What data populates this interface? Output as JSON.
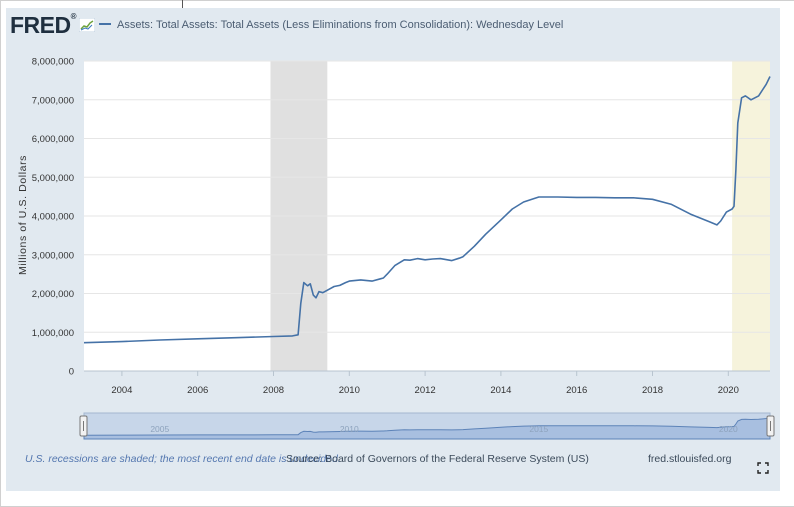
{
  "header": {
    "logo": "FRED",
    "logo_mark": "®",
    "series_title": "Assets: Total Assets: Total Assets (Less Eliminations from Consolidation): Wednesday Level"
  },
  "footer": {
    "recession_note": "U.S. recessions are shaded; the most recent end date is undecided.",
    "source": "Source: Board of Governors of the Federal Reserve System (US)",
    "site": "fred.stlouisfed.org"
  },
  "colors": {
    "line": "#4572a7",
    "recession": "#e0e0e0",
    "recent": "#f6f3dc",
    "navigator_fill": "#a8bfe0",
    "background": "#e1e9f0"
  },
  "chart_data": {
    "type": "line",
    "title": "Assets: Total Assets: Total Assets (Less Eliminations from Consolidation): Wednesday Level",
    "ylabel": "Millions of U.S. Dollars",
    "xlabel": "",
    "ylim": [
      0,
      8000000
    ],
    "xlim": [
      2003.0,
      2021.1
    ],
    "x_ticks": [
      "2004",
      "2006",
      "2008",
      "2010",
      "2012",
      "2014",
      "2016",
      "2018",
      "2020"
    ],
    "y_ticks": [
      "0",
      "1,000,000",
      "2,000,000",
      "3,000,000",
      "4,000,000",
      "5,000,000",
      "6,000,000",
      "7,000,000",
      "8,000,000"
    ],
    "recession_bands": [
      [
        2007.92,
        2009.42
      ]
    ],
    "recent_band": [
      2020.1,
      2021.1
    ],
    "navigator_ticks": [
      "2005",
      "2010",
      "2015",
      "2020"
    ],
    "series": [
      {
        "x": [
          2003.0,
          2004.0,
          2005.0,
          2006.0,
          2007.0,
          2008.0,
          2008.5,
          2008.65,
          2008.72,
          2008.8,
          2008.9,
          2008.97,
          2009.05,
          2009.12,
          2009.2,
          2009.3,
          2009.45,
          2009.6,
          2009.75,
          2009.9,
          2010.0,
          2010.3,
          2010.6,
          2010.9,
          2011.0,
          2011.2,
          2011.45,
          2011.6,
          2011.8,
          2012.0,
          2012.2,
          2012.4,
          2012.7,
          2012.9,
          2013.0,
          2013.3,
          2013.6,
          2014.0,
          2014.3,
          2014.6,
          2014.9,
          2015.0,
          2015.5,
          2016.0,
          2016.5,
          2017.0,
          2017.5,
          2018.0,
          2018.5,
          2019.0,
          2019.5,
          2019.7,
          2019.8,
          2019.95,
          2020.1,
          2020.15,
          2020.2,
          2020.25,
          2020.35,
          2020.45,
          2020.6,
          2020.8,
          2021.0,
          2021.1
        ],
        "y": [
          730000,
          760000,
          800000,
          830000,
          860000,
          890000,
          905000,
          935000,
          1750000,
          2280000,
          2200000,
          2250000,
          1960000,
          1890000,
          2050000,
          2020000,
          2100000,
          2180000,
          2210000,
          2280000,
          2320000,
          2350000,
          2320000,
          2400000,
          2500000,
          2720000,
          2870000,
          2860000,
          2900000,
          2870000,
          2890000,
          2900000,
          2850000,
          2910000,
          2950000,
          3220000,
          3530000,
          3900000,
          4180000,
          4360000,
          4460000,
          4490000,
          4490000,
          4480000,
          4480000,
          4470000,
          4470000,
          4430000,
          4300000,
          4050000,
          3850000,
          3770000,
          3870000,
          4100000,
          4180000,
          4250000,
          5200000,
          6400000,
          7050000,
          7100000,
          7000000,
          7100000,
          7400000,
          7600000
        ]
      }
    ]
  }
}
